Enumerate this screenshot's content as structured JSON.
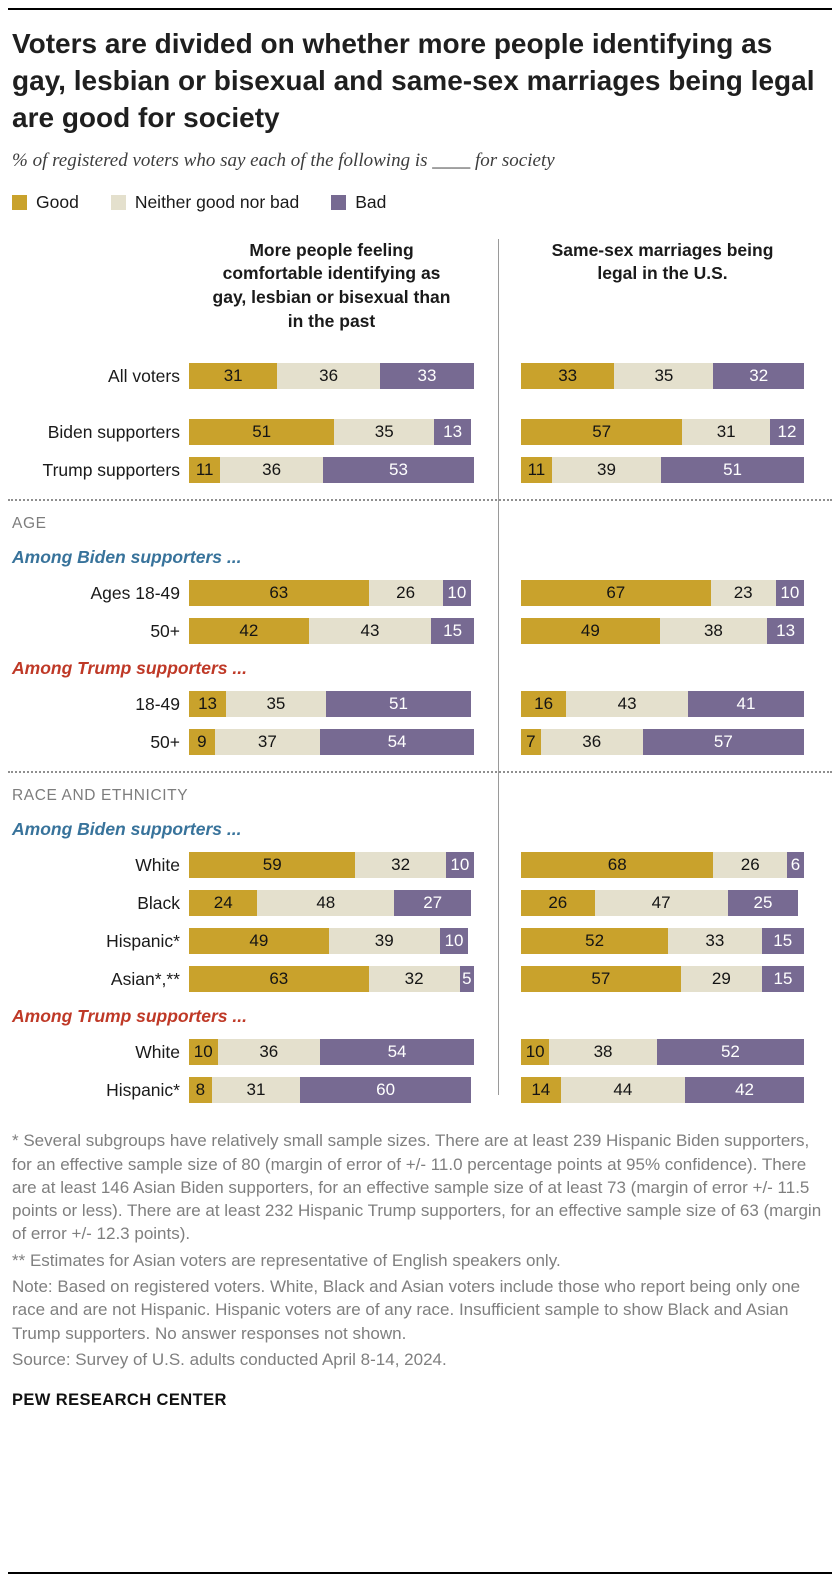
{
  "header": {
    "title": "Voters are divided on whether more people identifying as gay, lesbian or bisexual and same-sex marriages being legal are good for society",
    "subtitle": "% of registered voters who say each of the following is ____ for society"
  },
  "legend": [
    {
      "label": "Good",
      "color": "#C9A22C"
    },
    {
      "label": "Neither good nor bad",
      "color": "#E4E0CD"
    },
    {
      "label": "Bad",
      "color": "#776A92"
    }
  ],
  "chart_data": {
    "type": "bar",
    "stacked": true,
    "unit": "%",
    "xlim": [
      0,
      100
    ],
    "legend_position": "top-left",
    "series_labels": [
      "Good",
      "Neither good nor bad",
      "Bad"
    ],
    "colors": [
      "#C9A22C",
      "#E4E0CD",
      "#776A92"
    ],
    "accent_colors": {
      "biden_blue": "#38739B",
      "trump_red": "#BF3927"
    },
    "columns": [
      {
        "header": "More people feeling comfortable identifying as gay, lesbian or bisexual than in the past"
      },
      {
        "header": "Same-sex marriages being legal in the U.S."
      }
    ],
    "items": [
      {
        "type": "row",
        "label": "All voters",
        "left": [
          31,
          36,
          33
        ],
        "right": [
          33,
          35,
          32
        ]
      },
      {
        "type": "spacer"
      },
      {
        "type": "row",
        "label": "Biden supporters",
        "left": [
          51,
          35,
          13
        ],
        "right": [
          57,
          31,
          12
        ]
      },
      {
        "type": "row",
        "label": "Trump supporters",
        "left": [
          11,
          36,
          53
        ],
        "right": [
          11,
          39,
          51
        ]
      },
      {
        "type": "divider"
      },
      {
        "type": "section",
        "label": "AGE"
      },
      {
        "type": "subhead",
        "label": "Among Biden supporters ...",
        "color": "#38739B"
      },
      {
        "type": "row",
        "label": "Ages 18-49",
        "left": [
          63,
          26,
          10
        ],
        "right": [
          67,
          23,
          10
        ]
      },
      {
        "type": "row",
        "label": "50+",
        "left": [
          42,
          43,
          15
        ],
        "right": [
          49,
          38,
          13
        ]
      },
      {
        "type": "subhead",
        "label": "Among Trump supporters ...",
        "color": "#BF3927"
      },
      {
        "type": "row",
        "label": "18-49",
        "left": [
          13,
          35,
          51
        ],
        "right": [
          16,
          43,
          41
        ]
      },
      {
        "type": "row",
        "label": "50+",
        "left": [
          9,
          37,
          54
        ],
        "right": [
          7,
          36,
          57
        ]
      },
      {
        "type": "divider"
      },
      {
        "type": "section",
        "label": "RACE AND ETHNICITY"
      },
      {
        "type": "subhead",
        "label": "Among Biden supporters ...",
        "color": "#38739B"
      },
      {
        "type": "row",
        "label": "White",
        "left": [
          59,
          32,
          10
        ],
        "right": [
          68,
          26,
          6
        ]
      },
      {
        "type": "row",
        "label": "Black",
        "left": [
          24,
          48,
          27
        ],
        "right": [
          26,
          47,
          25
        ]
      },
      {
        "type": "row",
        "label": "Hispanic*",
        "left": [
          49,
          39,
          10
        ],
        "right": [
          52,
          33,
          15
        ]
      },
      {
        "type": "row",
        "label": "Asian*,**",
        "left": [
          63,
          32,
          5
        ],
        "right": [
          57,
          29,
          15
        ]
      },
      {
        "type": "subhead",
        "label": "Among Trump supporters ...",
        "color": "#BF3927"
      },
      {
        "type": "row",
        "label": "White",
        "left": [
          10,
          36,
          54
        ],
        "right": [
          10,
          38,
          52
        ]
      },
      {
        "type": "row",
        "label": "Hispanic*",
        "left": [
          8,
          31,
          60
        ],
        "right": [
          14,
          44,
          42
        ]
      }
    ]
  },
  "footnotes": [
    "* Several subgroups have relatively small sample sizes. There are at least 239 Hispanic Biden supporters, for an effective sample size of 80 (margin of error of +/- 11.0 percentage points at 95% confidence). There are at least 146 Asian Biden supporters, for an effective sample size of at least 73 (margin of error +/- 11.5 points or less). There are at least 232 Hispanic Trump supporters, for an effective sample size of 63 (margin of error +/- 12.3 points).",
    "** Estimates for Asian voters are representative of English speakers only.",
    "Note: Based on registered voters. White, Black and Asian voters include those who report being only one race and are not Hispanic. Hispanic voters are of any race. Insufficient sample to show Black and Asian Trump supporters. No answer responses not shown.",
    "Source: Survey of U.S. adults conducted April 8-14, 2024."
  ],
  "brand": "PEW RESEARCH CENTER"
}
